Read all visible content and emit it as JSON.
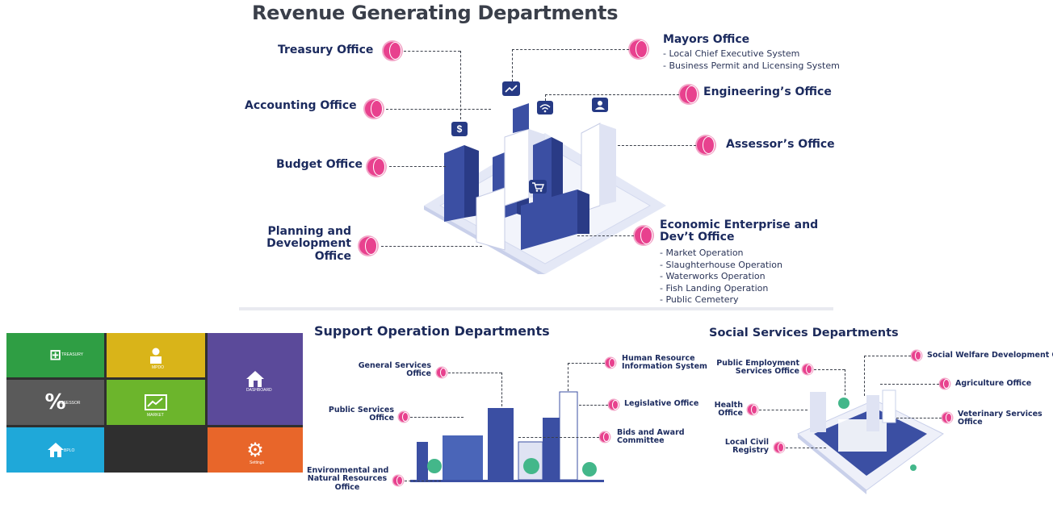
{
  "revenue": {
    "title": "Revenue Generating Departments",
    "treasury": "Treasury Office",
    "accounting": "Accounting Office",
    "budget": "Budget Office",
    "planning": [
      "Planning and",
      "Development",
      "Office"
    ],
    "mayors": "Mayors Office",
    "mayors_items": [
      "Local Chief Executive System",
      "Business Permit and Licensing System"
    ],
    "engineering": "Engineering’s Office",
    "assessor": "Assessor’s Office",
    "economic": [
      "Economic Enterprise and",
      "Dev’t Office"
    ],
    "economic_items": [
      "Market Operation",
      "Slaughterhouse Operation",
      "Waterworks Operation",
      "Fish Landing Operation",
      "Public Cemetery"
    ],
    "icons": [
      "dollar-icon",
      "chart-icon",
      "wifi-icon",
      "user-icon",
      "cart-icon"
    ]
  },
  "support": {
    "title": "Support Operation Departments",
    "general": [
      "General Services",
      "Office"
    ],
    "public": [
      "Public Services",
      "Office"
    ],
    "environment": [
      "Environmental and",
      "Natural Resources",
      "Office"
    ],
    "hr": [
      "Human Resource",
      "Information System"
    ],
    "legislative": "Legislative Office",
    "bids": [
      "Bids and Award",
      "Committee"
    ]
  },
  "social": {
    "title": "Social Services Departments",
    "peso": [
      "Public Employment",
      "Services Office"
    ],
    "health": [
      "Health",
      "Office"
    ],
    "civil": [
      "Local Civil",
      "Registry"
    ],
    "welfare": "Social Welfare Development Office",
    "agriculture": "Agriculture Office",
    "veterinary": [
      "Veterinary Services",
      "Office"
    ]
  },
  "tiles": {
    "treasury": "TREASURY",
    "mpdo": "MPDO",
    "dashboard": "DASHBOARD",
    "assessor": "ASSESSOR",
    "market": "MARKET",
    "bplo": "BPLO",
    "settings": "Settings",
    "colors": {
      "green": "#2f9e44",
      "yellow": "#d9b419",
      "purple": "#5b4a9a",
      "gray": "#5a5a5a",
      "lime": "#6cb52c",
      "cyan": "#1fa8d9",
      "dark": "#2f2f2f",
      "orange": "#e8662a"
    }
  },
  "colors": {
    "accent": "#e8418e",
    "navy": "#1b2a5e",
    "building": "#3b4fa3"
  }
}
